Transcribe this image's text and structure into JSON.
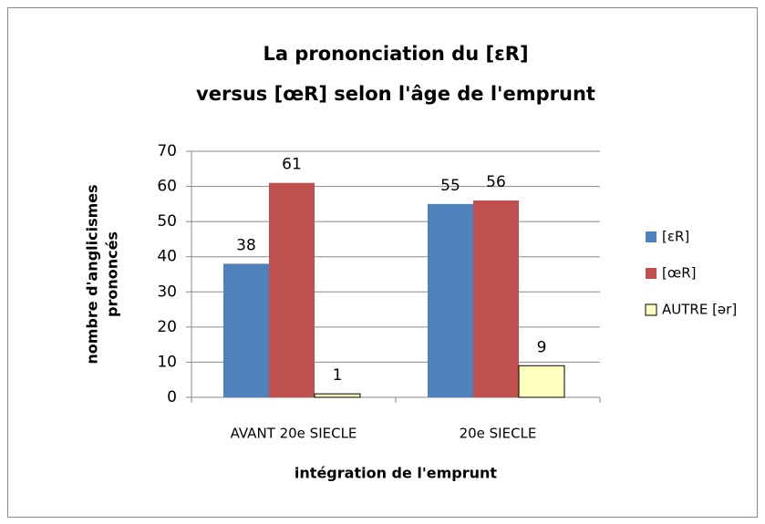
{
  "chart_data": {
    "type": "bar",
    "title": [
      "La prononciation du [ɛR]",
      "versus [œR] selon l'âge de l'emprunt"
    ],
    "x_label": "intégration de l'emprunt",
    "y_label": [
      "nombre d'anglicismes",
      "prononcés"
    ],
    "categories": [
      "AVANT 20e SIECLE",
      "20e SIECLE"
    ],
    "series": [
      {
        "name": "[ɛR]",
        "color": "#4f81bd",
        "values": [
          38,
          55
        ]
      },
      {
        "name": "[œR]",
        "color": "#c0504d",
        "values": [
          61,
          56
        ]
      },
      {
        "name": "AUTRE [ər]",
        "color": "#ffffc0",
        "values": [
          1,
          9
        ]
      }
    ],
    "ylim": [
      0,
      70
    ],
    "yticks": [
      0,
      10,
      20,
      30,
      40,
      50,
      60,
      70
    ],
    "grid": true,
    "legend": "right"
  }
}
